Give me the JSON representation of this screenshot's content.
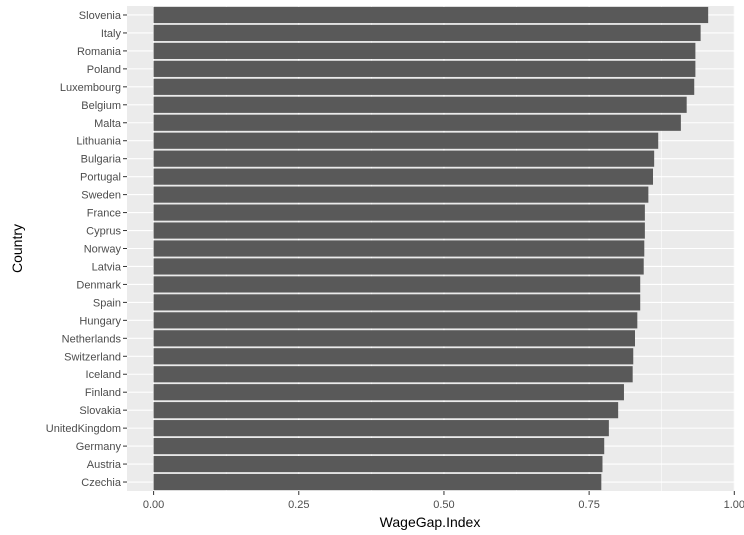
{
  "chart_data": {
    "type": "bar",
    "orientation": "horizontal",
    "xlabel": "WageGap.Index",
    "ylabel": "Country",
    "xlim": [
      0,
      1.0
    ],
    "x_ticks": [
      "0.00",
      "0.25",
      "0.50",
      "0.75",
      "1.00"
    ],
    "x_tick_values": [
      0,
      0.25,
      0.5,
      0.75,
      1.0
    ],
    "grid": true,
    "legend": "none",
    "colors": {
      "panel": "#ebebeb",
      "grid_major": "#ffffff",
      "bar": "#595959",
      "tick_text": "#4d4d4d"
    },
    "categories": [
      "Slovenia",
      "Italy",
      "Romania",
      "Poland",
      "Luxembourg",
      "Belgium",
      "Malta",
      "Lithuania",
      "Bulgaria",
      "Portugal",
      "Sweden",
      "France",
      "Cyprus",
      "Norway",
      "Latvia",
      "Denmark",
      "Spain",
      "Hungary",
      "Netherlands",
      "Switzerland",
      "Iceland",
      "Finland",
      "Slovakia",
      "UnitedKingdom",
      "Germany",
      "Austria",
      "Czechia"
    ],
    "values": [
      0.955,
      0.942,
      0.933,
      0.933,
      0.931,
      0.918,
      0.908,
      0.869,
      0.862,
      0.86,
      0.852,
      0.846,
      0.846,
      0.845,
      0.844,
      0.838,
      0.838,
      0.833,
      0.829,
      0.826,
      0.825,
      0.81,
      0.8,
      0.784,
      0.776,
      0.773,
      0.771
    ]
  }
}
